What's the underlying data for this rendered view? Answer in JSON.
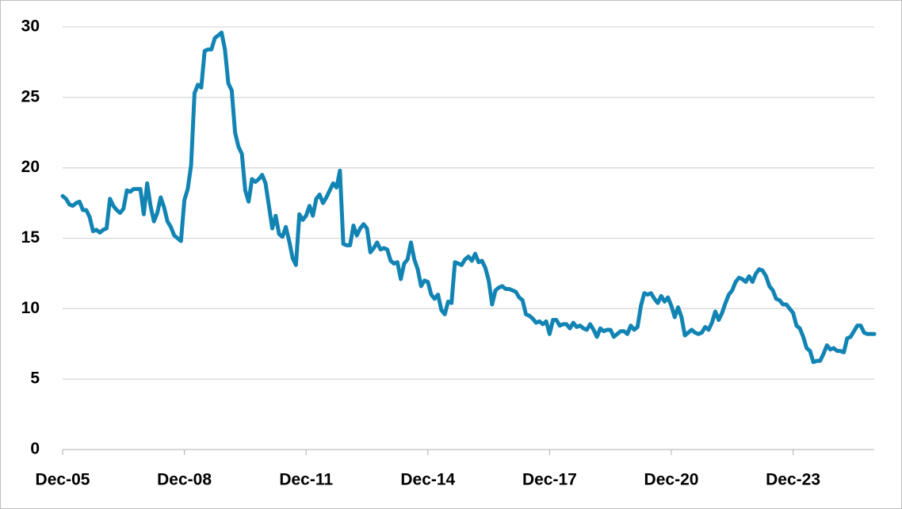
{
  "chart_data": {
    "type": "line",
    "categories": [
      "Dec-05",
      null,
      null,
      null,
      null,
      null,
      null,
      null,
      null,
      null,
      null,
      null,
      null,
      null,
      null,
      null,
      null,
      null,
      null,
      null,
      null,
      null,
      null,
      null,
      null,
      null,
      null,
      null,
      null,
      null,
      null,
      null,
      null,
      null,
      null,
      null,
      "Dec-08",
      null,
      null,
      null,
      null,
      null,
      null,
      null,
      null,
      null,
      null,
      null,
      null,
      null,
      null,
      null,
      null,
      null,
      null,
      null,
      null,
      null,
      null,
      null,
      null,
      null,
      null,
      null,
      null,
      null,
      null,
      null,
      null,
      null,
      null,
      null,
      "Dec-11",
      null,
      null,
      null,
      null,
      null,
      null,
      null,
      null,
      null,
      null,
      null,
      null,
      null,
      null,
      null,
      null,
      null,
      null,
      null,
      null,
      null,
      null,
      null,
      null,
      null,
      null,
      null,
      null,
      null,
      null,
      null,
      null,
      null,
      null,
      null,
      "Dec-14",
      null,
      null,
      null,
      null,
      null,
      null,
      null,
      null,
      null,
      null,
      null,
      null,
      null,
      null,
      null,
      null,
      null,
      null,
      null,
      null,
      null,
      null,
      null,
      null,
      null,
      null,
      null,
      null,
      null,
      null,
      null,
      null,
      null,
      null,
      null,
      "Dec-17",
      null,
      null,
      null,
      null,
      null,
      null,
      null,
      null,
      null,
      null,
      null,
      null,
      null,
      null,
      null,
      null,
      null,
      null,
      null,
      null,
      null,
      null,
      null,
      null,
      null,
      null,
      null,
      null,
      null,
      null,
      null,
      null,
      null,
      null,
      null,
      "Dec-20",
      null,
      null,
      null,
      null,
      null,
      null,
      null,
      null,
      null,
      null,
      null,
      null,
      null,
      null,
      null,
      null,
      null,
      null,
      null,
      null,
      null,
      null,
      null,
      null,
      null,
      null,
      null,
      null,
      null,
      null,
      null,
      null,
      null,
      null,
      null,
      "Dec-23",
      null,
      null,
      null,
      null,
      null,
      null,
      null,
      null,
      null,
      null,
      null,
      null,
      null,
      null,
      null,
      null,
      null,
      null,
      null,
      null,
      null,
      null,
      null,
      null
    ],
    "series": [
      {
        "color": "#1284b4",
        "values": [
          18.0,
          17.8,
          17.4,
          17.3,
          17.5,
          17.6,
          17.0,
          17.0,
          16.5,
          15.5,
          15.6,
          15.4,
          15.6,
          15.7,
          17.8,
          17.3,
          17.0,
          16.8,
          17.1,
          18.4,
          18.3,
          18.5,
          18.5,
          18.5,
          16.7,
          18.9,
          17.3,
          16.2,
          16.8,
          17.9,
          17.2,
          16.2,
          15.8,
          15.2,
          15.0,
          14.8,
          17.7,
          18.5,
          20.2,
          25.3,
          25.9,
          25.7,
          28.3,
          28.4,
          28.4,
          29.2,
          29.4,
          29.6,
          28.4,
          26.0,
          25.5,
          22.5,
          21.5,
          21.0,
          18.4,
          17.6,
          19.2,
          19.0,
          19.2,
          19.5,
          18.9,
          17.3,
          15.7,
          16.6,
          15.3,
          15.1,
          15.8,
          14.8,
          13.6,
          13.1,
          16.7,
          16.3,
          16.6,
          17.3,
          16.6,
          17.8,
          18.1,
          17.5,
          17.9,
          18.4,
          18.9,
          18.6,
          19.8,
          14.6,
          14.5,
          14.5,
          15.9,
          15.2,
          15.7,
          16.0,
          15.7,
          14.0,
          14.3,
          14.7,
          14.2,
          14.3,
          14.2,
          13.4,
          13.2,
          13.3,
          12.1,
          13.2,
          13.5,
          14.7,
          13.5,
          12.8,
          11.6,
          12.0,
          11.9,
          11.0,
          10.7,
          11.0,
          9.9,
          9.6,
          10.5,
          10.4,
          13.3,
          13.2,
          13.1,
          13.5,
          13.7,
          13.4,
          13.9,
          13.3,
          13.4,
          12.9,
          12.0,
          10.3,
          11.3,
          11.5,
          11.6,
          11.4,
          11.4,
          11.3,
          11.2,
          10.8,
          10.6,
          9.6,
          9.5,
          9.3,
          9.0,
          9.1,
          8.9,
          9.1,
          8.2,
          9.2,
          9.2,
          8.8,
          8.9,
          8.9,
          8.6,
          9.0,
          8.7,
          8.8,
          8.6,
          8.5,
          8.9,
          8.5,
          8.0,
          8.6,
          8.4,
          8.5,
          8.5,
          8.0,
          8.2,
          8.4,
          8.4,
          8.2,
          8.8,
          8.5,
          8.7,
          10.2,
          11.1,
          11.0,
          11.1,
          10.7,
          10.4,
          10.9,
          10.5,
          10.8,
          10.2,
          9.4,
          10.1,
          9.4,
          8.1,
          8.3,
          8.5,
          8.3,
          8.2,
          8.3,
          8.7,
          8.5,
          9.0,
          9.8,
          9.2,
          9.7,
          10.4,
          11.0,
          11.3,
          11.9,
          12.2,
          12.1,
          11.9,
          12.3,
          11.9,
          12.5,
          12.8,
          12.7,
          12.3,
          11.6,
          11.3,
          10.7,
          10.6,
          10.3,
          10.3,
          10.0,
          9.7,
          8.8,
          8.6,
          8.0,
          7.2,
          7.0,
          6.2,
          6.3,
          6.3,
          6.8,
          7.4,
          7.1,
          7.2,
          7.0,
          7.0,
          6.9,
          7.9,
          8.0,
          8.4,
          8.8,
          8.8,
          8.3,
          8.2,
          8.2,
          8.2
        ]
      }
    ],
    "ylim": [
      0,
      30
    ],
    "yticks": [
      0,
      5,
      10,
      15,
      20,
      25,
      30
    ],
    "grid": true
  }
}
